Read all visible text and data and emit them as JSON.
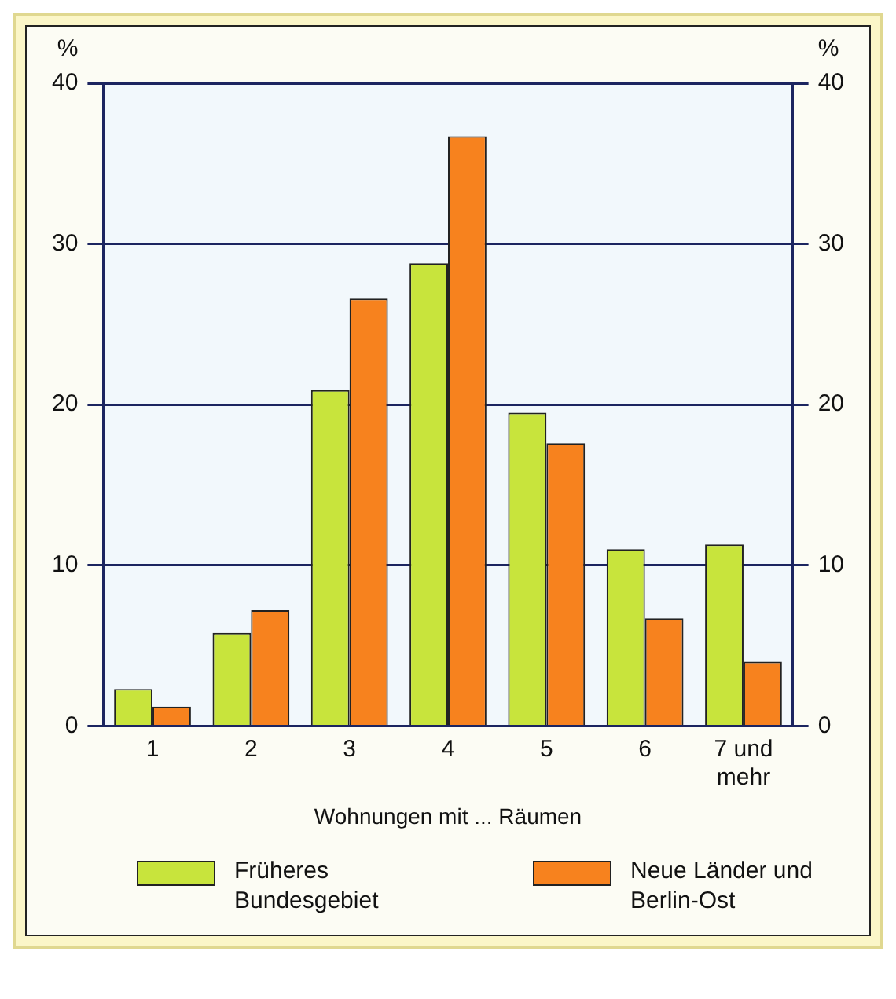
{
  "chart_data": {
    "type": "bar",
    "xlabel": "Wohnungen mit ... Räumen",
    "ylabel": "%",
    "y2label": "%",
    "categories": [
      "1",
      "2",
      "3",
      "4",
      "5",
      "6",
      "7 und mehr"
    ],
    "series": [
      {
        "name": "Früheres Bundesgebiet",
        "color": "#c8e43c",
        "values": [
          2.3,
          5.8,
          20.9,
          28.8,
          19.5,
          11.0,
          11.3
        ]
      },
      {
        "name": "Neue Länder und Berlin-Ost",
        "color": "#f7821e",
        "values": [
          1.2,
          7.2,
          26.6,
          36.7,
          17.6,
          6.7,
          4.0
        ]
      }
    ],
    "ylim": [
      0,
      40
    ],
    "yticks": [
      0,
      10,
      20,
      30,
      40
    ],
    "y2lim": [
      0,
      40
    ],
    "y2ticks": [
      0,
      10,
      20,
      30,
      40
    ],
    "grid": "y",
    "legend": "bottom"
  }
}
